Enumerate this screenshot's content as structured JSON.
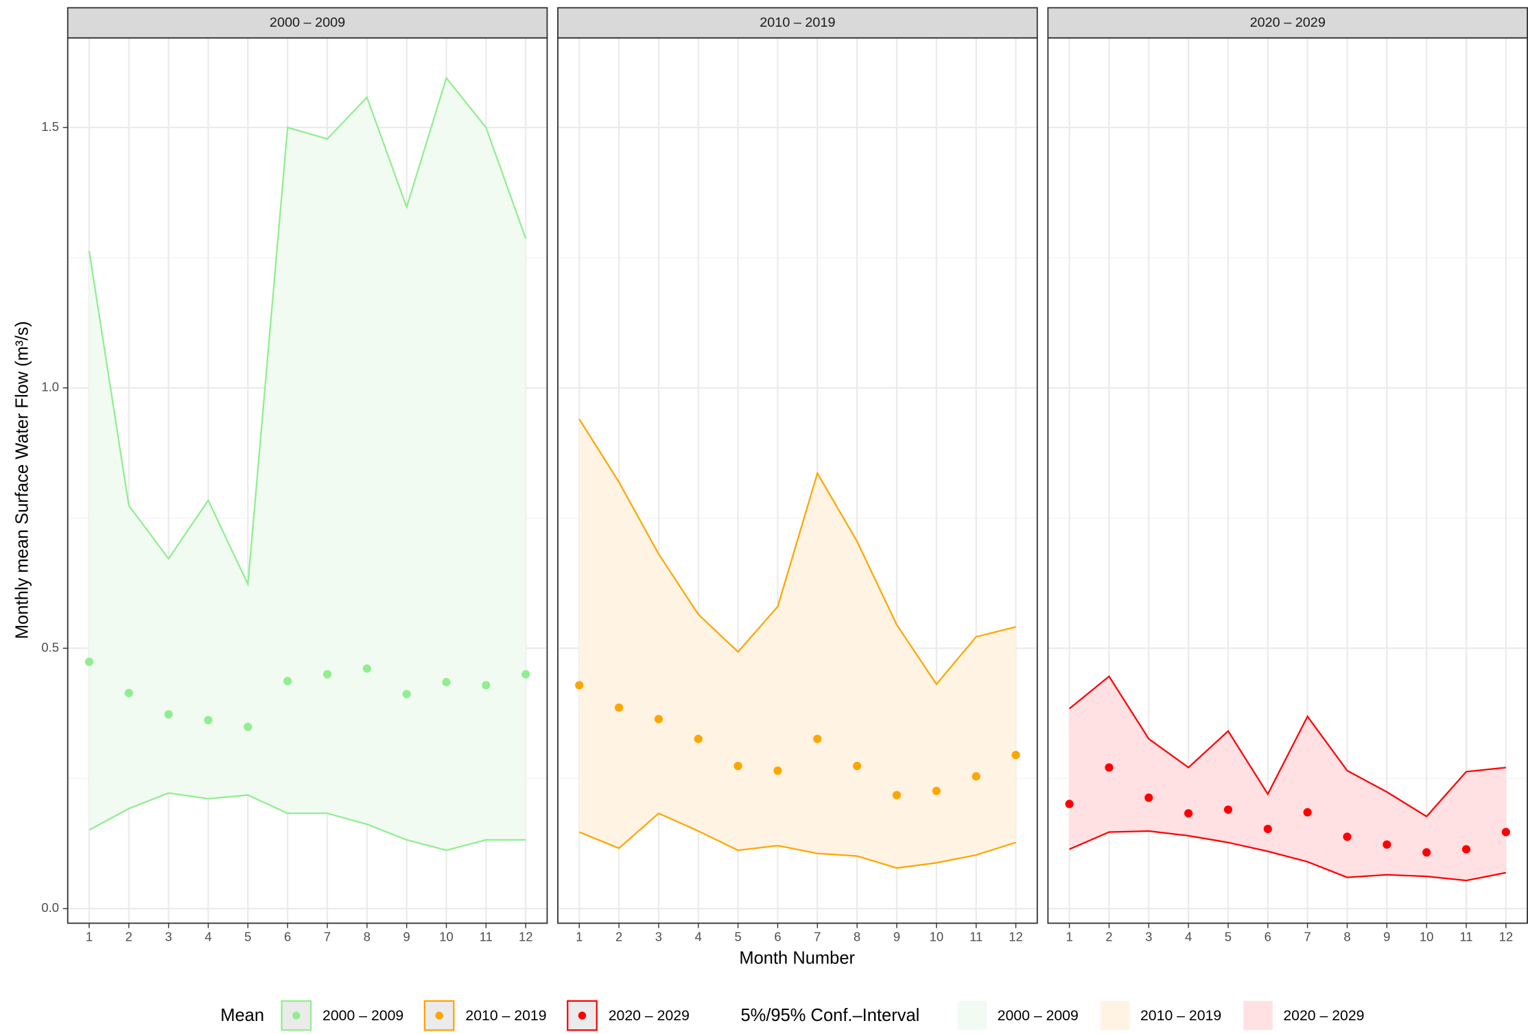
{
  "chart_data": {
    "type": "line",
    "y_label": "Monthly mean Surface Water Flow (m³/s)",
    "x_label": "Month Number",
    "ylim": [
      -0.028,
      1.672
    ],
    "yticks": [
      {
        "value": 0,
        "label": "0.0"
      },
      0.5,
      {
        "value": 1,
        "label": "1.0"
      },
      1.5
    ],
    "minor_yticks": [
      0.25,
      0.75,
      1.25
    ],
    "xlim": [
      0.46,
      12.54
    ],
    "xticks": [
      1,
      2,
      3,
      4,
      5,
      6,
      7,
      8,
      9,
      10,
      11,
      12
    ],
    "grid": true,
    "legend": {
      "mean_title": "Mean",
      "ci_title": "5%/95% Conf.–Interval",
      "position": "bottom"
    },
    "panels": [
      {
        "title": "2000 – 2009",
        "color": "#90ee90",
        "fill": "#f1fbf1",
        "mean": [
          0.474,
          0.414,
          0.373,
          0.362,
          0.349,
          0.437,
          0.45,
          0.461,
          0.412,
          0.435,
          0.429,
          0.45
        ],
        "upper": [
          1.263,
          0.774,
          0.672,
          0.784,
          0.623,
          1.5,
          1.478,
          1.558,
          1.347,
          1.595,
          1.5,
          1.287
        ],
        "lower": [
          0.151,
          0.192,
          0.222,
          0.211,
          0.218,
          0.183,
          0.183,
          0.162,
          0.132,
          0.112,
          0.132,
          0.132
        ]
      },
      {
        "title": "2010 – 2019",
        "color": "#ffa500",
        "fill": "#fff4e3",
        "mean": [
          0.429,
          0.386,
          0.364,
          0.326,
          0.274,
          0.265,
          0.326,
          0.274,
          0.218,
          0.226,
          0.254,
          0.295
        ],
        "upper": [
          0.94,
          0.819,
          0.681,
          0.565,
          0.493,
          0.58,
          0.836,
          0.705,
          0.545,
          0.431,
          0.522,
          0.541
        ],
        "lower": [
          0.147,
          0.116,
          0.183,
          0.149,
          0.112,
          0.121,
          0.106,
          0.101,
          0.078,
          0.088,
          0.103,
          0.127
        ]
      },
      {
        "title": "2020 – 2029",
        "color": "#ff0000",
        "fill": "#ffe0e3",
        "mean": [
          0.201,
          0.271,
          0.213,
          0.183,
          0.19,
          0.153,
          0.185,
          0.138,
          0.123,
          0.108,
          0.114,
          0.147
        ],
        "upper": [
          0.384,
          0.446,
          0.326,
          0.271,
          0.341,
          0.22,
          0.369,
          0.265,
          0.224,
          0.177,
          0.263,
          0.271
        ],
        "lower": [
          0.114,
          0.147,
          0.149,
          0.14,
          0.127,
          0.11,
          0.09,
          0.06,
          0.065,
          0.062,
          0.054,
          0.069
        ]
      }
    ]
  }
}
